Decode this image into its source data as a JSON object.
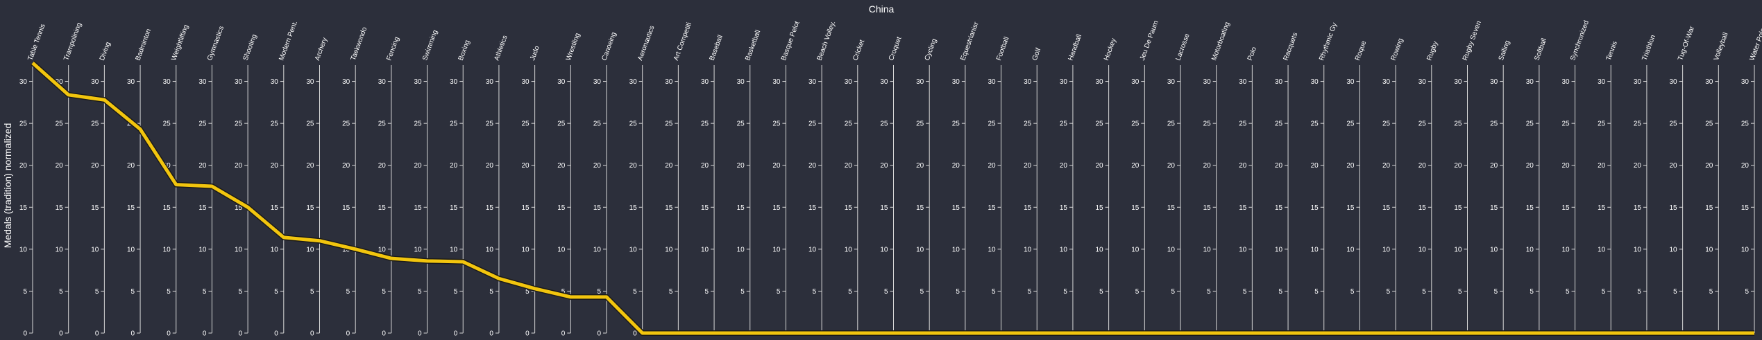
{
  "chart_data": {
    "type": "line",
    "title": "China",
    "ylabel": "Medals (tradition) normalized",
    "ylim": [
      0,
      35
    ],
    "yticks": [
      0,
      5,
      10,
      15,
      20,
      25,
      30
    ],
    "grid": false,
    "categories": [
      "Table Tennis",
      "Trampolining",
      "Diving",
      "Badminton",
      "Weightlifting",
      "Gymnastics",
      "Shooting",
      "Modern Pent.",
      "Archery",
      "Taekwondo",
      "Fencing",
      "Swimming",
      "Boxing",
      "Athletics",
      "Judo",
      "Wrestling",
      "Canoeing",
      "Aeronautics",
      "Art Competiti",
      "Baseball",
      "Basketball",
      "Basque Pelot",
      "Beach Volley.",
      "Cricket",
      "Croquet",
      "Cycling",
      "Equestrianisr",
      "Football",
      "Golf",
      "Handball",
      "Hockey",
      "Jeu De Paum",
      "Lacrosse",
      "Motorboating",
      "Polo",
      "Racquets",
      "Rhythmic Gy",
      "Roque",
      "Rowing",
      "Rugby",
      "Rugby Seven",
      "Sailing",
      "Softball",
      "Synchronized",
      "Tennis",
      "Triathlon",
      "Tug-Of-War",
      "Volleyball",
      "Water Polo"
    ],
    "series": [
      {
        "color": "#f2c50e",
        "values": [
          32.2,
          28.4,
          27.8,
          24.3,
          17.7,
          17.5,
          15.0,
          11.4,
          11.0,
          10.0,
          8.9,
          8.6,
          8.5,
          6.5,
          5.3,
          4.3,
          4.3,
          0,
          0,
          0,
          0,
          0,
          0,
          0,
          0,
          0,
          0,
          0,
          0,
          0,
          0,
          0,
          0,
          0,
          0,
          0,
          0,
          0,
          0,
          0,
          0,
          0,
          0,
          0,
          0,
          0,
          0,
          0,
          0
        ]
      }
    ]
  }
}
